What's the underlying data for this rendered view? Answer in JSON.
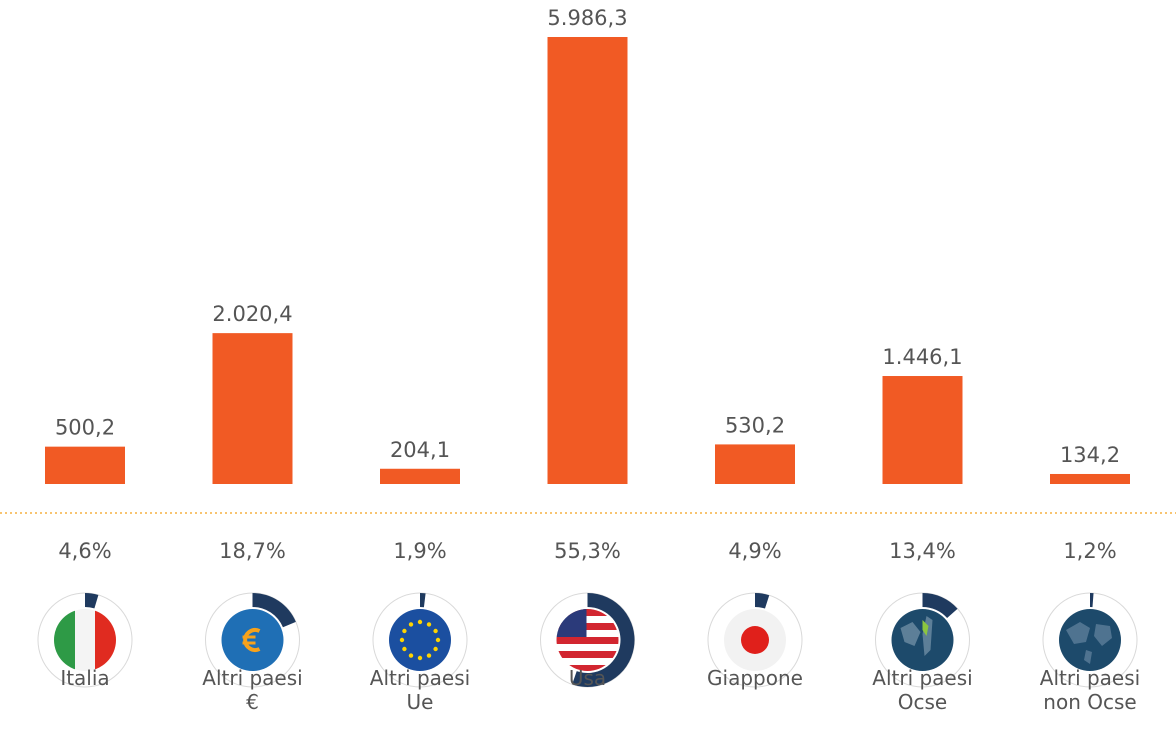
{
  "chart_data": {
    "type": "bar",
    "categories": [
      "Italia",
      "Altri paesi €",
      "Altri paesi Ue",
      "Usa",
      "Giappone",
      "Altri paesi Ocse",
      "Altri paesi non Ocse"
    ],
    "values": [
      500.2,
      2020.4,
      204.1,
      5986.3,
      530.2,
      1446.1,
      134.2
    ],
    "value_labels": [
      "500,2",
      "2.020,4",
      "204,1",
      "5.986,3",
      "530,2",
      "1.446,1",
      "134,2"
    ],
    "shares": [
      4.6,
      18.7,
      1.9,
      55.3,
      4.9,
      13.4,
      1.2
    ],
    "share_labels": [
      "4,6%",
      "18,7%",
      "1,9%",
      "55,3%",
      "4,9%",
      "13,4%",
      "1,2%"
    ],
    "color": "#f15a24",
    "share_color": "#1f3a5f"
  }
}
